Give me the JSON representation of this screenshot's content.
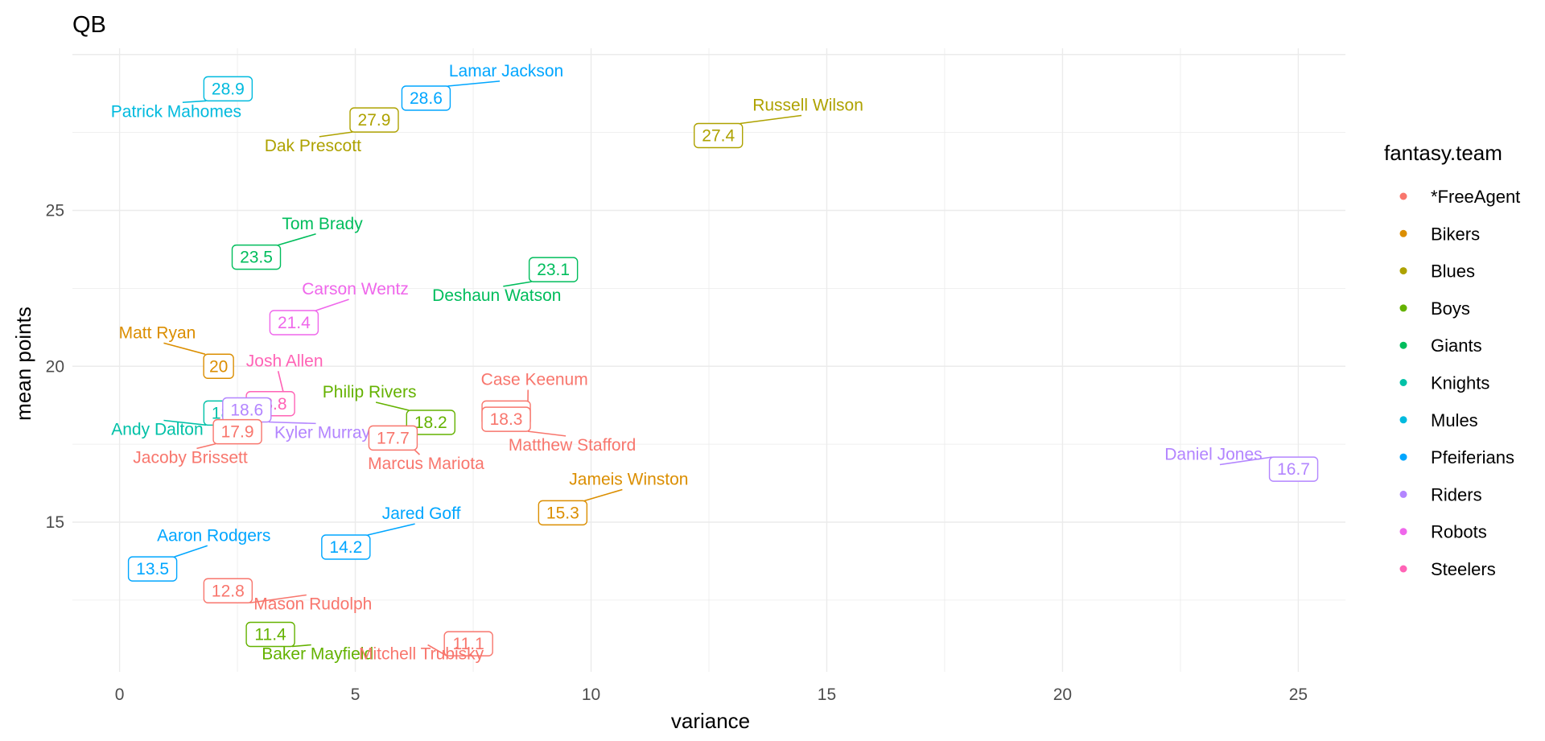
{
  "chart_data": {
    "type": "scatter",
    "title": "QB",
    "xlabel": "variance",
    "ylabel": "mean points",
    "xlim": [
      -1,
      26
    ],
    "ylim": [
      10.2,
      30.2
    ],
    "xticks": [
      0,
      5,
      10,
      15,
      20,
      25
    ],
    "yticks": [
      15,
      20,
      25
    ],
    "grid": true,
    "legend": {
      "title": "fantasy.team",
      "position": "right",
      "entries": [
        {
          "name": "*FreeAgent",
          "color": "#F8766D"
        },
        {
          "name": "Bikers",
          "color": "#DB8E00"
        },
        {
          "name": "Blues",
          "color": "#AEA200"
        },
        {
          "name": "Boys",
          "color": "#64B200"
        },
        {
          "name": "Giants",
          "color": "#00BD5C"
        },
        {
          "name": "Knights",
          "color": "#00C1A7"
        },
        {
          "name": "Mules",
          "color": "#00BADE"
        },
        {
          "name": "Pfeiferians",
          "color": "#00A6FF"
        },
        {
          "name": "Riders",
          "color": "#B385FF"
        },
        {
          "name": "Robots",
          "color": "#EF67EB"
        },
        {
          "name": "Steelers",
          "color": "#FF63B6"
        }
      ]
    },
    "points": [
      {
        "player": "Patrick Mahomes",
        "team": "Mules",
        "x": 2.3,
        "y": 28.9,
        "label": "28.9",
        "lx": 2.3,
        "ly": 28.9,
        "nx": 1.2,
        "ny": 28.0
      },
      {
        "player": "Lamar Jackson",
        "team": "Pfeiferians",
        "x": 6.5,
        "y": 28.6,
        "label": "28.6",
        "lx": 6.5,
        "ly": 28.6,
        "nx": 8.2,
        "ny": 29.3
      },
      {
        "player": "Dak Prescott",
        "team": "Blues",
        "x": 5.4,
        "y": 27.9,
        "label": "27.9",
        "lx": 5.4,
        "ly": 27.9,
        "nx": 4.1,
        "ny": 26.9
      },
      {
        "player": "Russell Wilson",
        "team": "Blues",
        "x": 12.7,
        "y": 27.4,
        "label": "27.4",
        "lx": 12.7,
        "ly": 27.4,
        "nx": 14.6,
        "ny": 28.2
      },
      {
        "player": "Tom Brady",
        "team": "Giants",
        "x": 2.9,
        "y": 23.5,
        "label": "23.5",
        "lx": 2.9,
        "ly": 23.5,
        "nx": 4.3,
        "ny": 24.4
      },
      {
        "player": "Deshaun Watson",
        "team": "Giants",
        "x": 9.2,
        "y": 23.1,
        "label": "23.1",
        "lx": 9.2,
        "ly": 23.1,
        "nx": 8.0,
        "ny": 22.1
      },
      {
        "player": "Carson Wentz",
        "team": "Robots",
        "x": 3.7,
        "y": 21.4,
        "label": "21.4",
        "lx": 3.7,
        "ly": 21.4,
        "nx": 5.0,
        "ny": 22.3
      },
      {
        "player": "Matt Ryan",
        "team": "Bikers",
        "x": 2.1,
        "y": 20.0,
        "label": "20",
        "lx": 2.1,
        "ly": 20.0,
        "nx": 0.8,
        "ny": 20.9
      },
      {
        "player": "Josh Allen",
        "team": "Steelers",
        "x": 3.2,
        "y": 18.8,
        "label": "18.8",
        "lx": 3.2,
        "ly": 18.8,
        "nx": 3.5,
        "ny": 20.0
      },
      {
        "player": "Andy Dalton",
        "team": "Knights",
        "x": 2.3,
        "y": 18.5,
        "label": "18.5",
        "lx": 2.3,
        "ly": 18.5,
        "nx": 0.8,
        "ny": 17.8
      },
      {
        "player": "Kyler Murray",
        "team": "Riders",
        "x": 2.7,
        "y": 18.6,
        "label": "18.6",
        "lx": 2.7,
        "ly": 18.6,
        "nx": 4.3,
        "ny": 17.7
      },
      {
        "player": "Jacoby Brissett",
        "team": "*FreeAgent",
        "x": 2.5,
        "y": 17.9,
        "label": "17.9",
        "lx": 2.5,
        "ly": 17.9,
        "nx": 1.5,
        "ny": 16.9
      },
      {
        "player": "Philip Rivers",
        "team": "Boys",
        "x": 6.6,
        "y": 18.2,
        "label": "18.2",
        "lx": 6.6,
        "ly": 18.2,
        "nx": 5.3,
        "ny": 19.0
      },
      {
        "player": "Case Keenum",
        "team": "*FreeAgent",
        "x": 8.2,
        "y": 18.5,
        "label": "18.5",
        "lx": 8.2,
        "ly": 18.5,
        "nx": 8.8,
        "ny": 19.4
      },
      {
        "player": "Matthew Stafford",
        "team": "*FreeAgent",
        "x": 8.2,
        "y": 18.3,
        "label": "18.3",
        "lx": 8.2,
        "ly": 18.3,
        "nx": 9.6,
        "ny": 17.3
      },
      {
        "player": "Marcus Mariota",
        "team": "*FreeAgent",
        "x": 5.8,
        "y": 17.7,
        "label": "17.7",
        "lx": 5.8,
        "ly": 17.7,
        "nx": 6.5,
        "ny": 16.7
      },
      {
        "player": "Daniel Jones",
        "team": "Riders",
        "x": 24.9,
        "y": 16.7,
        "label": "16.7",
        "lx": 24.9,
        "ly": 16.7,
        "nx": 23.2,
        "ny": 17.0
      },
      {
        "player": "Jameis Winston",
        "team": "Bikers",
        "x": 9.4,
        "y": 15.3,
        "label": "15.3",
        "lx": 9.4,
        "ly": 15.3,
        "nx": 10.8,
        "ny": 16.2
      },
      {
        "player": "Jared Goff",
        "team": "Pfeiferians",
        "x": 4.8,
        "y": 14.2,
        "label": "14.2",
        "lx": 4.8,
        "ly": 14.2,
        "nx": 6.4,
        "ny": 15.1
      },
      {
        "player": "Aaron Rodgers",
        "team": "Pfeiferians",
        "x": 0.7,
        "y": 13.5,
        "label": "13.5",
        "lx": 0.7,
        "ly": 13.5,
        "nx": 2.0,
        "ny": 14.4
      },
      {
        "player": "Mason Rudolph",
        "team": "*FreeAgent",
        "x": 2.3,
        "y": 12.8,
        "label": "12.8",
        "lx": 2.3,
        "ly": 12.8,
        "nx": 4.1,
        "ny": 12.2
      },
      {
        "player": "Baker Mayfield",
        "team": "Boys",
        "x": 3.2,
        "y": 11.4,
        "label": "11.4",
        "lx": 3.2,
        "ly": 11.4,
        "nx": 4.2,
        "ny": 10.6
      },
      {
        "player": "Mitchell Trubisky",
        "team": "*FreeAgent",
        "x": 7.4,
        "y": 11.1,
        "label": "11.1",
        "lx": 7.4,
        "ly": 11.1,
        "nx": 6.4,
        "ny": 10.6
      }
    ]
  }
}
